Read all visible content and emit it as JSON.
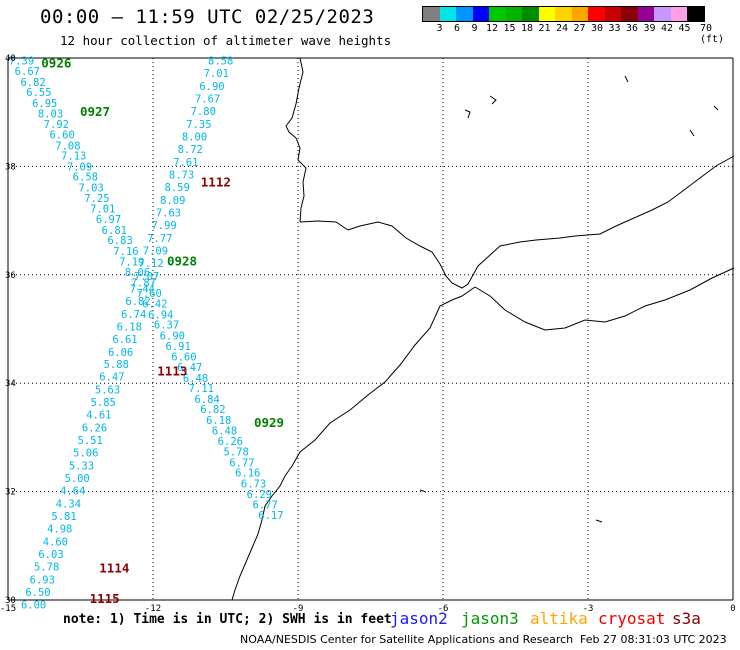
{
  "header": {
    "title": "00:00 – 11:59 UTC 02/25/2023",
    "subtitle": "12 hour collection of altimeter wave heights"
  },
  "legend": {
    "colors": [
      "#808080",
      "#00e5e5",
      "#0096ff",
      "#0000ff",
      "#00c800",
      "#00b400",
      "#008c00",
      "#ffff00",
      "#ffd200",
      "#ffa500",
      "#ff0000",
      "#c80000",
      "#8b0000",
      "#960096",
      "#c896ff",
      "#ffa0e6",
      "#000000"
    ],
    "labels": [
      "3",
      "6",
      "9",
      "12",
      "15",
      "18",
      "21",
      "24",
      "27",
      "30",
      "33",
      "36",
      "39",
      "42",
      "45",
      "70 (ft)"
    ]
  },
  "map": {
    "lon_ticks": [
      "-15",
      "-12",
      "-9",
      "-6",
      "-3",
      "0"
    ],
    "lat_ticks": [
      "40",
      "38",
      "36",
      "34",
      "32",
      "30"
    ],
    "track_color": "#00b8e6",
    "labels": [
      {
        "text": "0926",
        "lon": -14.0,
        "lat": 39.9,
        "color": "#008000"
      },
      {
        "text": "0927",
        "lon": -13.2,
        "lat": 39.0,
        "color": "#008000"
      },
      {
        "text": "1112",
        "lon": -10.7,
        "lat": 37.7,
        "color": "#8b0000"
      },
      {
        "text": "0928",
        "lon": -11.4,
        "lat": 36.25,
        "color": "#008000"
      },
      {
        "text": "1113",
        "lon": -11.6,
        "lat": 34.22,
        "color": "#8b0000"
      },
      {
        "text": "0929",
        "lon": -9.6,
        "lat": 33.27,
        "color": "#008000"
      },
      {
        "text": "1114",
        "lon": -12.8,
        "lat": 30.58,
        "color": "#8b0000"
      },
      {
        "text": "1115",
        "lon": -13.0,
        "lat": 30.02,
        "color": "#8b0000"
      }
    ],
    "track_a": [
      {
        "v": "7.39",
        "lon": -14.72,
        "lat": 39.95
      },
      {
        "v": "6.67",
        "lon": -14.6,
        "lat": 39.76
      },
      {
        "v": "6.82",
        "lon": -14.48,
        "lat": 39.56
      },
      {
        "v": "6.55",
        "lon": -14.36,
        "lat": 39.37
      },
      {
        "v": "6.95",
        "lon": -14.24,
        "lat": 39.17
      },
      {
        "v": "8.03",
        "lon": -14.12,
        "lat": 38.98
      },
      {
        "v": "7.92",
        "lon": -14.0,
        "lat": 38.78
      },
      {
        "v": "6.60",
        "lon": -13.88,
        "lat": 38.59
      },
      {
        "v": "7.08",
        "lon": -13.76,
        "lat": 38.39
      },
      {
        "v": "7.13",
        "lon": -13.64,
        "lat": 38.2
      },
      {
        "v": "7.09",
        "lon": -13.52,
        "lat": 38.0
      },
      {
        "v": "6.58",
        "lon": -13.4,
        "lat": 37.81
      },
      {
        "v": "7.03",
        "lon": -13.28,
        "lat": 37.61
      },
      {
        "v": "7.25",
        "lon": -13.16,
        "lat": 37.42
      },
      {
        "v": "7.01",
        "lon": -13.04,
        "lat": 37.22
      },
      {
        "v": "6.97",
        "lon": -12.92,
        "lat": 37.03
      },
      {
        "v": "6.81",
        "lon": -12.8,
        "lat": 36.83
      },
      {
        "v": "6.83",
        "lon": -12.68,
        "lat": 36.64
      },
      {
        "v": "7.16",
        "lon": -12.56,
        "lat": 36.44
      },
      {
        "v": "7.19",
        "lon": -12.44,
        "lat": 36.25
      },
      {
        "v": "8.06",
        "lon": -12.32,
        "lat": 36.05
      },
      {
        "v": "7.87",
        "lon": -12.2,
        "lat": 35.86
      },
      {
        "v": "7.60",
        "lon": -12.08,
        "lat": 35.66
      },
      {
        "v": "6.42",
        "lon": -11.96,
        "lat": 35.47
      },
      {
        "v": "6.94",
        "lon": -11.84,
        "lat": 35.27
      },
      {
        "v": "6.37",
        "lon": -11.72,
        "lat": 35.08
      },
      {
        "v": "6.90",
        "lon": -11.6,
        "lat": 34.88
      },
      {
        "v": "6.91",
        "lon": -11.48,
        "lat": 34.69
      },
      {
        "v": "6.60",
        "lon": -11.36,
        "lat": 34.49
      },
      {
        "v": "6.47",
        "lon": -11.24,
        "lat": 34.3
      },
      {
        "v": "6.48",
        "lon": -11.12,
        "lat": 34.1
      },
      {
        "v": "7.11",
        "lon": -11.0,
        "lat": 33.91
      },
      {
        "v": "6.84",
        "lon": -10.88,
        "lat": 33.71
      },
      {
        "v": "6.82",
        "lon": -10.76,
        "lat": 33.52
      },
      {
        "v": "6.18",
        "lon": -10.64,
        "lat": 33.32
      },
      {
        "v": "6.48",
        "lon": -10.52,
        "lat": 33.13
      },
      {
        "v": "6.26",
        "lon": -10.4,
        "lat": 32.93
      },
      {
        "v": "5.78",
        "lon": -10.28,
        "lat": 32.74
      },
      {
        "v": "6.77",
        "lon": -10.16,
        "lat": 32.54
      },
      {
        "v": "6.16",
        "lon": -10.04,
        "lat": 32.35
      },
      {
        "v": "6.73",
        "lon": -9.92,
        "lat": 32.15
      },
      {
        "v": "6.29",
        "lon": -9.8,
        "lat": 31.96
      },
      {
        "v": "6.77",
        "lon": -9.68,
        "lat": 31.76
      },
      {
        "v": "6.17",
        "lon": -9.56,
        "lat": 31.57
      }
    ],
    "track_b": [
      {
        "v": "8.58",
        "lon": -10.6,
        "lat": 39.95
      },
      {
        "v": "7.01",
        "lon": -10.69,
        "lat": 39.72
      },
      {
        "v": "6.90",
        "lon": -10.78,
        "lat": 39.48
      },
      {
        "v": "7.67",
        "lon": -10.87,
        "lat": 39.25
      },
      {
        "v": "7.80",
        "lon": -10.96,
        "lat": 39.02
      },
      {
        "v": "7.35",
        "lon": -11.05,
        "lat": 38.78
      },
      {
        "v": "8.00",
        "lon": -11.14,
        "lat": 38.55
      },
      {
        "v": "8.72",
        "lon": -11.23,
        "lat": 38.32
      },
      {
        "v": "7.61",
        "lon": -11.32,
        "lat": 38.08
      },
      {
        "v": "8.73",
        "lon": -11.41,
        "lat": 37.85
      },
      {
        "v": "8.59",
        "lon": -11.5,
        "lat": 37.62
      },
      {
        "v": "8.09",
        "lon": -11.59,
        "lat": 37.38
      },
      {
        "v": "7.63",
        "lon": -11.68,
        "lat": 37.15
      },
      {
        "v": "7.99",
        "lon": -11.77,
        "lat": 36.92
      },
      {
        "v": "7.77",
        "lon": -11.86,
        "lat": 36.68
      },
      {
        "v": "7.09",
        "lon": -11.95,
        "lat": 36.45
      },
      {
        "v": "7.12",
        "lon": -12.04,
        "lat": 36.22
      },
      {
        "v": "7.07",
        "lon": -12.13,
        "lat": 35.98
      },
      {
        "v": "7.44",
        "lon": -12.22,
        "lat": 35.75
      },
      {
        "v": "6.82",
        "lon": -12.31,
        "lat": 35.52
      },
      {
        "v": "6.74",
        "lon": -12.4,
        "lat": 35.28
      },
      {
        "v": "6.18",
        "lon": -12.49,
        "lat": 35.05
      },
      {
        "v": "6.61",
        "lon": -12.58,
        "lat": 34.82
      },
      {
        "v": "6.06",
        "lon": -12.67,
        "lat": 34.58
      },
      {
        "v": "5.88",
        "lon": -12.76,
        "lat": 34.35
      },
      {
        "v": "6.47",
        "lon": -12.85,
        "lat": 34.12
      },
      {
        "v": "5.63",
        "lon": -12.94,
        "lat": 33.88
      },
      {
        "v": "5.85",
        "lon": -13.03,
        "lat": 33.65
      },
      {
        "v": "4.61",
        "lon": -13.12,
        "lat": 33.42
      },
      {
        "v": "6.26",
        "lon": -13.21,
        "lat": 33.18
      },
      {
        "v": "5.51",
        "lon": -13.3,
        "lat": 32.95
      },
      {
        "v": "5.06",
        "lon": -13.39,
        "lat": 32.72
      },
      {
        "v": "5.33",
        "lon": -13.48,
        "lat": 32.48
      },
      {
        "v": "5.00",
        "lon": -13.57,
        "lat": 32.25
      },
      {
        "v": "4.64",
        "lon": -13.66,
        "lat": 32.02
      },
      {
        "v": "4.34",
        "lon": -13.75,
        "lat": 31.78
      },
      {
        "v": "5.81",
        "lon": -13.84,
        "lat": 31.55
      },
      {
        "v": "4.98",
        "lon": -13.93,
        "lat": 31.32
      },
      {
        "v": "4.60",
        "lon": -14.02,
        "lat": 31.08
      },
      {
        "v": "6.03",
        "lon": -14.11,
        "lat": 30.85
      },
      {
        "v": "5.78",
        "lon": -14.2,
        "lat": 30.62
      },
      {
        "v": "6.93",
        "lon": -14.29,
        "lat": 30.38
      },
      {
        "v": "6.50",
        "lon": -14.38,
        "lat": 30.15
      },
      {
        "v": "6.00",
        "lon": -14.47,
        "lat": 29.92
      }
    ]
  },
  "notes": {
    "note": "note: 1) Time is in UTC; 2) SWH is in feet",
    "satellites": [
      {
        "name": "jason2",
        "color": "#1a1aff"
      },
      {
        "name": "jason3",
        "color": "#009900"
      },
      {
        "name": "altika",
        "color": "#ffa500"
      },
      {
        "name": "cryosat",
        "color": "#ee0000"
      },
      {
        "name": "s3a",
        "color": "#8b0000"
      }
    ]
  },
  "footer": {
    "credit": "NOAA/NESDIS Center for Satellite Applications and Research",
    "generated": "Feb 27 08:31:03 UTC 2023"
  }
}
